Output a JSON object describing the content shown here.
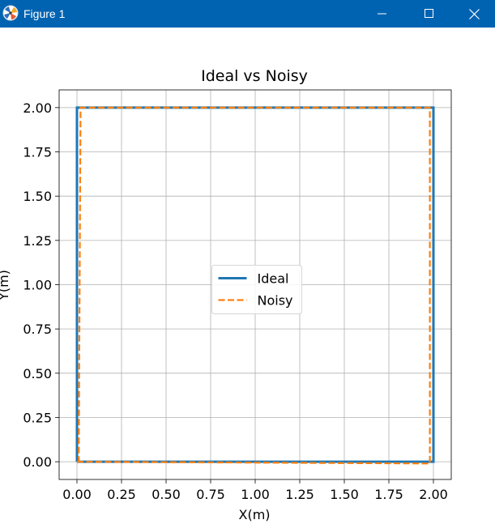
{
  "window": {
    "title": "Figure 1",
    "icons": {
      "app": "matplotlib-figure-icon",
      "minimize": "minimize-icon",
      "maximize": "maximize-icon",
      "close": "close-icon"
    },
    "titlebar_color": "#0063b1"
  },
  "chart_data": {
    "type": "line",
    "title": "Ideal vs Noisy",
    "xlabel": "X(m)",
    "ylabel": "Y(m)",
    "xlim": [
      -0.1,
      2.1
    ],
    "ylim": [
      -0.1,
      2.1
    ],
    "xticks": [
      "0.00",
      "0.25",
      "0.50",
      "0.75",
      "1.00",
      "1.25",
      "1.50",
      "1.75",
      "2.00"
    ],
    "yticks": [
      "0.00",
      "0.25",
      "0.50",
      "0.75",
      "1.00",
      "1.25",
      "1.50",
      "1.75",
      "2.00"
    ],
    "grid": true,
    "legend": {
      "placement": "center"
    },
    "series": [
      {
        "name": "Ideal",
        "color": "#1f77b4",
        "style": "solid",
        "x": [
          0.0,
          2.0,
          2.0,
          0.0,
          0.0
        ],
        "y": [
          0.0,
          0.0,
          2.0,
          2.0,
          0.0
        ]
      },
      {
        "name": "Noisy",
        "color": "#ff7f0e",
        "style": "dashed",
        "x": [
          0.0,
          1.98,
          1.98,
          0.02,
          0.01,
          0.0
        ],
        "y": [
          0.0,
          -0.01,
          2.0,
          2.0,
          0.0,
          0.0
        ]
      }
    ]
  }
}
